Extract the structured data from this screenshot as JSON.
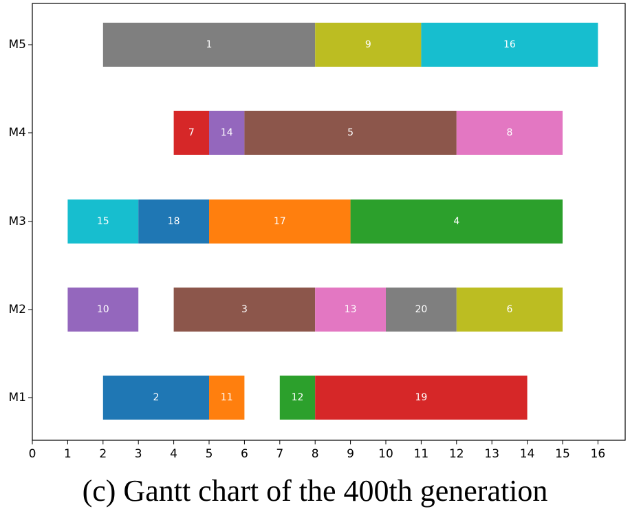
{
  "chart_data": {
    "type": "gantt",
    "title": "",
    "xlabel": "",
    "ylabel": "",
    "xlim": [
      0,
      16.7
    ],
    "xticks": [
      "0",
      "1",
      "2",
      "3",
      "4",
      "5",
      "6",
      "7",
      "8",
      "9",
      "10",
      "11",
      "12",
      "13",
      "14",
      "15",
      "16"
    ],
    "machines": [
      "M1",
      "M2",
      "M3",
      "M4",
      "M5"
    ],
    "tasks": [
      {
        "machine": "M5",
        "label": "1",
        "start": 2,
        "end": 8,
        "color": "#7f7f7f"
      },
      {
        "machine": "M5",
        "label": "9",
        "start": 8,
        "end": 11,
        "color": "#bcbd22"
      },
      {
        "machine": "M5",
        "label": "16",
        "start": 11,
        "end": 16,
        "color": "#17becf"
      },
      {
        "machine": "M4",
        "label": "7",
        "start": 4,
        "end": 5,
        "color": "#d62728"
      },
      {
        "machine": "M4",
        "label": "14",
        "start": 5,
        "end": 6,
        "color": "#9467bd"
      },
      {
        "machine": "M4",
        "label": "5",
        "start": 6,
        "end": 12,
        "color": "#8c564b"
      },
      {
        "machine": "M4",
        "label": "8",
        "start": 12,
        "end": 15,
        "color": "#e377c2"
      },
      {
        "machine": "M3",
        "label": "15",
        "start": 1,
        "end": 3,
        "color": "#17becf"
      },
      {
        "machine": "M3",
        "label": "18",
        "start": 3,
        "end": 5,
        "color": "#1f77b4"
      },
      {
        "machine": "M3",
        "label": "17",
        "start": 5,
        "end": 9,
        "color": "#ff7f0e"
      },
      {
        "machine": "M3",
        "label": "4",
        "start": 9,
        "end": 15,
        "color": "#2ca02c"
      },
      {
        "machine": "M2",
        "label": "10",
        "start": 1,
        "end": 3,
        "color": "#9467bd"
      },
      {
        "machine": "M2",
        "label": "3",
        "start": 4,
        "end": 8,
        "color": "#8c564b"
      },
      {
        "machine": "M2",
        "label": "13",
        "start": 8,
        "end": 10,
        "color": "#e377c2"
      },
      {
        "machine": "M2",
        "label": "20",
        "start": 10,
        "end": 12,
        "color": "#7f7f7f"
      },
      {
        "machine": "M2",
        "label": "6",
        "start": 12,
        "end": 15,
        "color": "#bcbd22"
      },
      {
        "machine": "M1",
        "label": "2",
        "start": 2,
        "end": 5,
        "color": "#1f77b4"
      },
      {
        "machine": "M1",
        "label": "11",
        "start": 5,
        "end": 6,
        "color": "#ff7f0e"
      },
      {
        "machine": "M1",
        "label": "12",
        "start": 7,
        "end": 8,
        "color": "#2ca02c"
      },
      {
        "machine": "M1",
        "label": "19",
        "start": 8,
        "end": 14,
        "color": "#d62728"
      }
    ]
  },
  "caption": "(c) Gantt chart of the 400th generation"
}
